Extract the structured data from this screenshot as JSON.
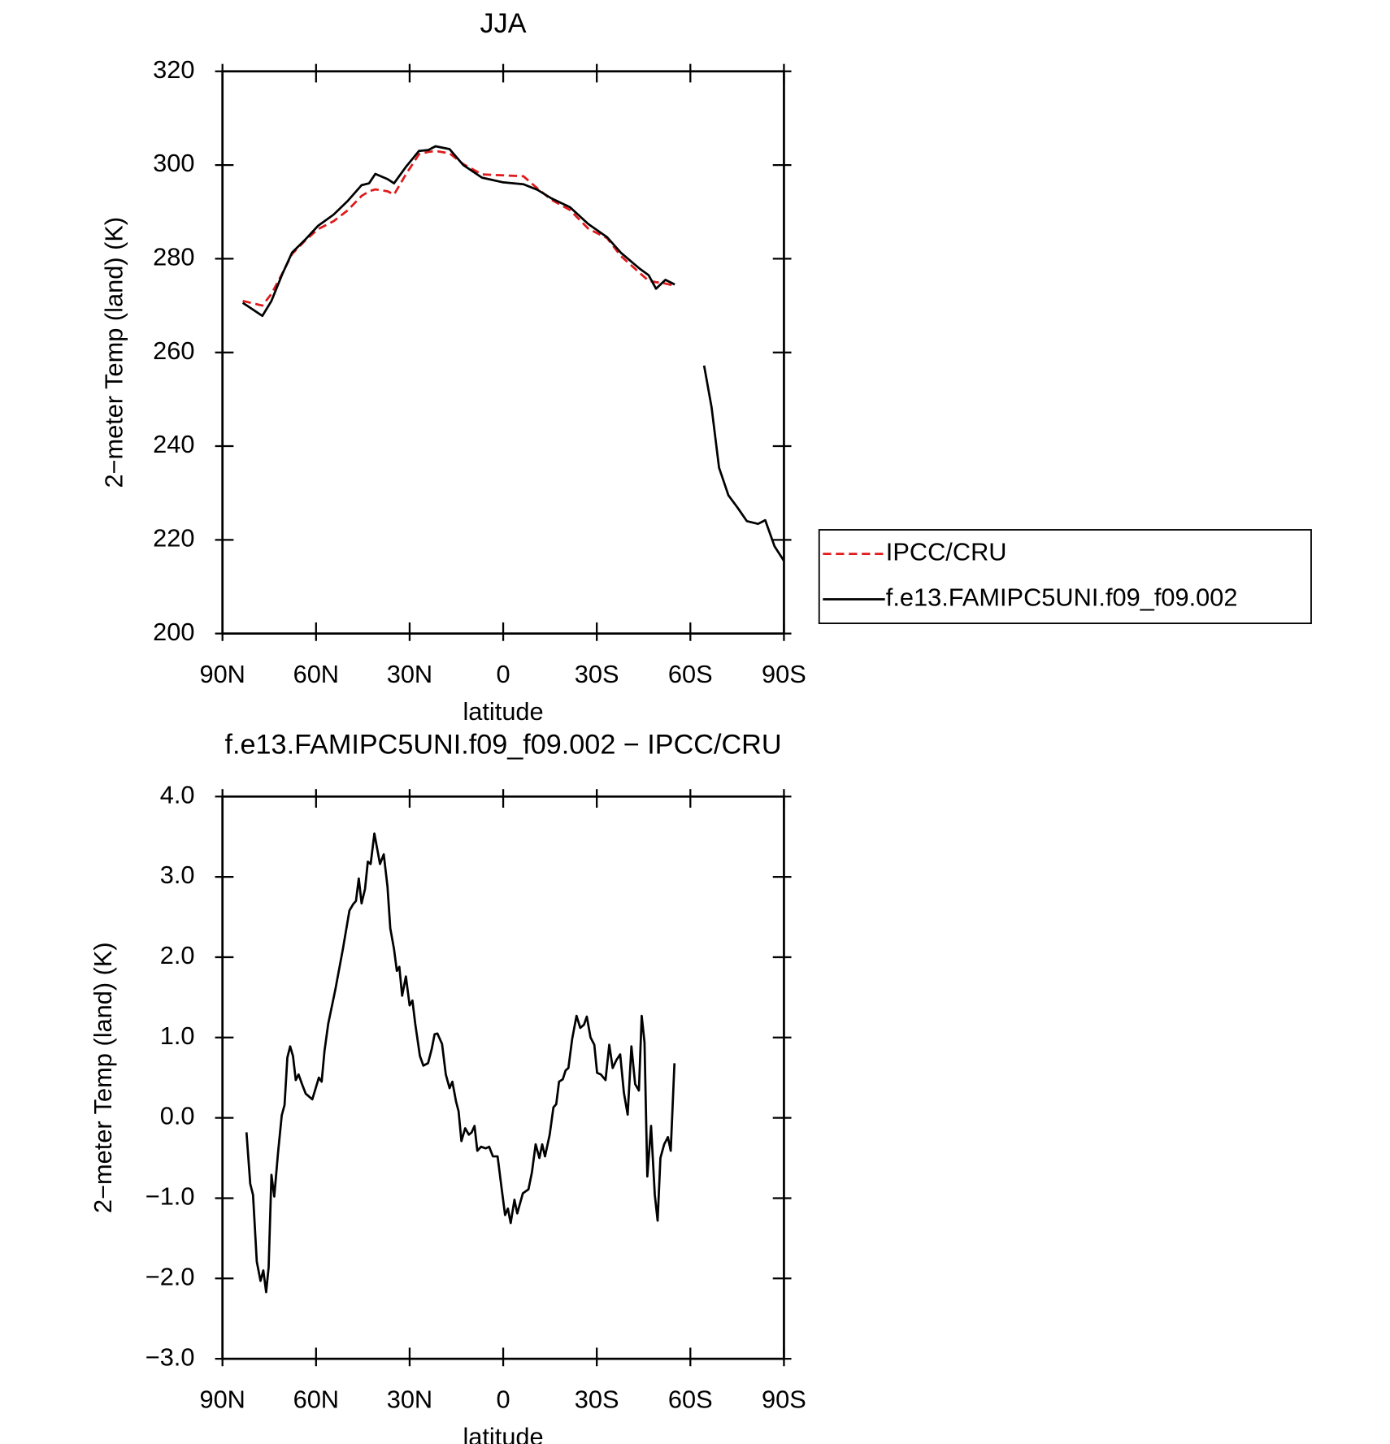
{
  "chart_data": [
    {
      "type": "line",
      "title": "JJA",
      "xlabel": "latitude",
      "ylabel": "2−meter Temp (land) (K)",
      "xlim": [
        90,
        -90
      ],
      "xticks": [
        {
          "value": 90,
          "label": "90N"
        },
        {
          "value": 60,
          "label": "60N"
        },
        {
          "value": 30,
          "label": "30N"
        },
        0,
        {
          "value": -30,
          "label": "30S"
        },
        {
          "value": -60,
          "label": "60S"
        },
        {
          "value": -90,
          "label": "90S"
        }
      ],
      "ylim": [
        200,
        320
      ],
      "yticks": [
        200,
        220,
        240,
        260,
        280,
        300,
        320
      ],
      "legend": "right",
      "x": [
        83.5,
        77.2,
        74.3,
        70.7,
        67.7,
        63.3,
        59.4,
        54.4,
        49.9,
        45.4,
        43,
        41,
        37.1,
        35,
        31.2,
        27,
        24,
        21.7,
        17.2,
        12.8,
        6.8,
        0,
        -6.5,
        -11,
        -15.4,
        -21.4,
        -27.3,
        -33.3,
        -37.7,
        -43.7,
        -46.6,
        -49,
        -52,
        -55,
        -60,
        -64.4,
        -66.8,
        -69.2,
        -72.2,
        -75.1,
        -78.1,
        -81.7,
        -84,
        -87,
        -90
      ],
      "series": [
        {
          "name": "IPCC/CRU",
          "color": "#e0191b",
          "linestyle": "dashed",
          "values": [
            271,
            270,
            272.5,
            277,
            281,
            284,
            286.3,
            288,
            290.3,
            293.4,
            294.4,
            294.8,
            294.4,
            293.7,
            298,
            302.3,
            302.8,
            303,
            302.5,
            300.2,
            298,
            297.8,
            297.6,
            295,
            292.6,
            290.4,
            286.4,
            284.4,
            280.6,
            277,
            275.3,
            275,
            274.7,
            274.2,
            null,
            null,
            null,
            null,
            null,
            null,
            null,
            null,
            null,
            null,
            null
          ]
        },
        {
          "name": "f.e13.FAMIPC5UNI.f09_f09.002",
          "color": "#000000",
          "linestyle": "solid",
          "values": [
            270.6,
            267.8,
            271,
            276.9,
            281.3,
            284.2,
            287,
            289.4,
            292.3,
            295.7,
            296.1,
            298.1,
            297,
            296.1,
            299.6,
            303,
            303.2,
            304,
            303.4,
            300,
            297.3,
            296.3,
            295.9,
            294.7,
            292.9,
            291,
            287.4,
            284.6,
            281.3,
            277.9,
            276.5,
            273.6,
            275.5,
            274.5,
            null,
            257.2,
            248.3,
            235.4,
            229.5,
            226.9,
            224,
            223.4,
            224.2,
            218.6,
            215.5
          ]
        }
      ]
    },
    {
      "type": "line",
      "title": "f.e13.FAMIPC5UNI.f09_f09.002 − IPCC/CRU",
      "xlabel": "latitude",
      "ylabel": "2−meter Temp (land) (K)",
      "xlim": [
        90,
        -90
      ],
      "xticks": [
        {
          "value": 90,
          "label": "90N"
        },
        {
          "value": 60,
          "label": "60N"
        },
        {
          "value": 30,
          "label": "30N"
        },
        0,
        {
          "value": -30,
          "label": "30S"
        },
        {
          "value": -60,
          "label": "60S"
        },
        {
          "value": -90,
          "label": "90S"
        }
      ],
      "ylim": [
        -3,
        4
      ],
      "yticks": [
        {
          "value": -3,
          "label": "−3.0"
        },
        {
          "value": -2,
          "label": "−2.0"
        },
        {
          "value": -1,
          "label": "−1.0"
        },
        {
          "value": 0,
          "label": "0.0"
        },
        {
          "value": 1,
          "label": "1.0"
        },
        {
          "value": 2,
          "label": "2.0"
        },
        {
          "value": 3,
          "label": "3.0"
        },
        {
          "value": 4,
          "label": "4.0"
        }
      ],
      "x": [
        82.3,
        81.1,
        80.2,
        79,
        77.8,
        76.9,
        76,
        75.2,
        74.3,
        73.4,
        72.2,
        71,
        70.1,
        69.2,
        68.3,
        67.4,
        66.5,
        65.6,
        64.5,
        63.3,
        61.2,
        59.1,
        58.2,
        57.3,
        56.1,
        53.8,
        51.4,
        49.3,
        48.1,
        47.2,
        46.3,
        45.4,
        44.3,
        43.4,
        42.5,
        41.3,
        39.5,
        38.3,
        37.1,
        36.2,
        35,
        34.1,
        33.3,
        32.4,
        31.2,
        30,
        29.1,
        28.2,
        26.7,
        25.6,
        24.1,
        22.9,
        22,
        21.1,
        19.6,
        18.4,
        17.2,
        16.3,
        15.1,
        14.3,
        13.4,
        12.2,
        11,
        10.1,
        9.2,
        8.3,
        7.1,
        5.6,
        4.5,
        3.3,
        1.8,
        0.6,
        -0.6,
        -1.5,
        -2.4,
        -3.6,
        -4.5,
        -6.3,
        -8.1,
        -9.2,
        -10.4,
        -11.6,
        -12.5,
        -13.4,
        -14.9,
        -16.1,
        -17,
        -17.9,
        -19.1,
        -20,
        -20.9,
        -22.1,
        -23.5,
        -24.7,
        -25.9,
        -26.8,
        -28,
        -29.2,
        -30.1,
        -31.3,
        -32.8,
        -34,
        -35.1,
        -36.3,
        -37.5,
        -38.7,
        -39.9,
        -41.1,
        -42.3,
        -43.5,
        -44.4,
        -45.3,
        -46.2,
        -47.4,
        -48.6,
        -49.5,
        -50.4,
        -51.6,
        -52.8,
        -53.7,
        -54.9
      ],
      "series": [
        {
          "name": "f.e13.FAMIPC5UNI.f09_f09.002 − IPCC/CRU",
          "color": "#000000",
          "linestyle": "solid",
          "values": [
            -0.18,
            -0.82,
            -0.96,
            -1.79,
            -2.03,
            -1.9,
            -2.17,
            -1.86,
            -0.71,
            -0.98,
            -0.44,
            0.03,
            0.16,
            0.75,
            0.89,
            0.77,
            0.47,
            0.54,
            0.42,
            0.3,
            0.23,
            0.5,
            0.45,
            0.83,
            1.17,
            1.6,
            2.1,
            2.58,
            2.66,
            2.7,
            2.98,
            2.67,
            2.85,
            3.19,
            3.16,
            3.54,
            3.16,
            3.28,
            2.88,
            2.36,
            2.1,
            1.83,
            1.88,
            1.52,
            1.76,
            1.4,
            1.46,
            1.17,
            0.77,
            0.65,
            0.68,
            0.86,
            1.04,
            1.05,
            0.92,
            0.54,
            0.37,
            0.45,
            0.2,
            0.08,
            -0.29,
            -0.13,
            -0.21,
            -0.18,
            -0.1,
            -0.41,
            -0.36,
            -0.38,
            -0.36,
            -0.48,
            -0.48,
            -0.85,
            -1.21,
            -1.13,
            -1.31,
            -1.02,
            -1.19,
            -0.94,
            -0.89,
            -0.68,
            -0.33,
            -0.5,
            -0.33,
            -0.48,
            -0.21,
            0.13,
            0.17,
            0.45,
            0.48,
            0.59,
            0.62,
            0.98,
            1.27,
            1.12,
            1.16,
            1.26,
            1.0,
            0.91,
            0.56,
            0.54,
            0.47,
            0.91,
            0.62,
            0.72,
            0.79,
            0.31,
            0.04,
            0.89,
            0.42,
            0.34,
            1.27,
            0.94,
            -0.73,
            -0.1,
            -0.96,
            -1.28,
            -0.5,
            -0.33,
            -0.24,
            -0.41,
            0.68
          ]
        }
      ]
    }
  ]
}
